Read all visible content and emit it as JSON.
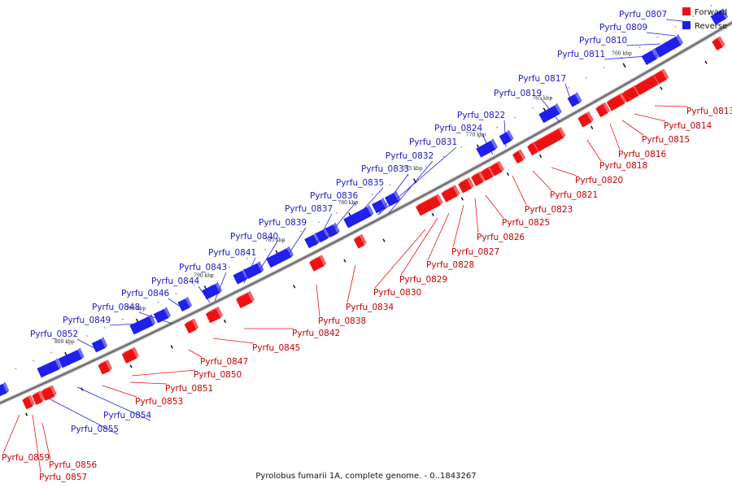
{
  "caption": "Pyrolobus fumarii 1A, complete genome. - 0..1843267",
  "legend": {
    "forward": "Forward",
    "reverse": "Reverse"
  },
  "colors": {
    "forward": "#ee1111",
    "reverse": "#1f1fee",
    "forwardText": "#cc0000",
    "reverseText": "#1a1acc"
  },
  "scale_ticks": [
    "760 kbp",
    "765 kbp",
    "770 kbp",
    "775 kbp",
    "780 kbp",
    "785 kbp",
    "790 kbp",
    "795 kbp",
    "800 kbp"
  ],
  "reverse_genes": [
    "Pyrfu_0807",
    "Pyrfu_0809",
    "Pyrfu_0810",
    "Pyrfu_0811",
    "Pyrfu_0817",
    "Pyrfu_0819",
    "Pyrfu_0822",
    "Pyrfu_0824",
    "Pyrfu_0831",
    "Pyrfu_0832",
    "Pyrfu_0833",
    "Pyrfu_0835",
    "Pyrfu_0836",
    "Pyrfu_0837",
    "Pyrfu_0839",
    "Pyrfu_0840",
    "Pyrfu_0841",
    "Pyrfu_0843",
    "Pyrfu_0844",
    "Pyrfu_0846",
    "Pyrfu_0848",
    "Pyrfu_0849",
    "Pyrfu_0852",
    "Pyrfu_0854",
    "Pyrfu_0855"
  ],
  "forward_genes": [
    "Pyrfu_0813",
    "Pyrfu_0814",
    "Pyrfu_0815",
    "Pyrfu_0816",
    "Pyrfu_0818",
    "Pyrfu_0820",
    "Pyrfu_0821",
    "Pyrfu_0823",
    "Pyrfu_0825",
    "Pyrfu_0826",
    "Pyrfu_0827",
    "Pyrfu_0828",
    "Pyrfu_0829",
    "Pyrfu_0830",
    "Pyrfu_0834",
    "Pyrfu_0838",
    "Pyrfu_0842",
    "Pyrfu_0845",
    "Pyrfu_0847",
    "Pyrfu_0850",
    "Pyrfu_0851",
    "Pyrfu_0853",
    "Pyrfu_0856",
    "Pyrfu_0857",
    "Pyrfu_0859"
  ]
}
